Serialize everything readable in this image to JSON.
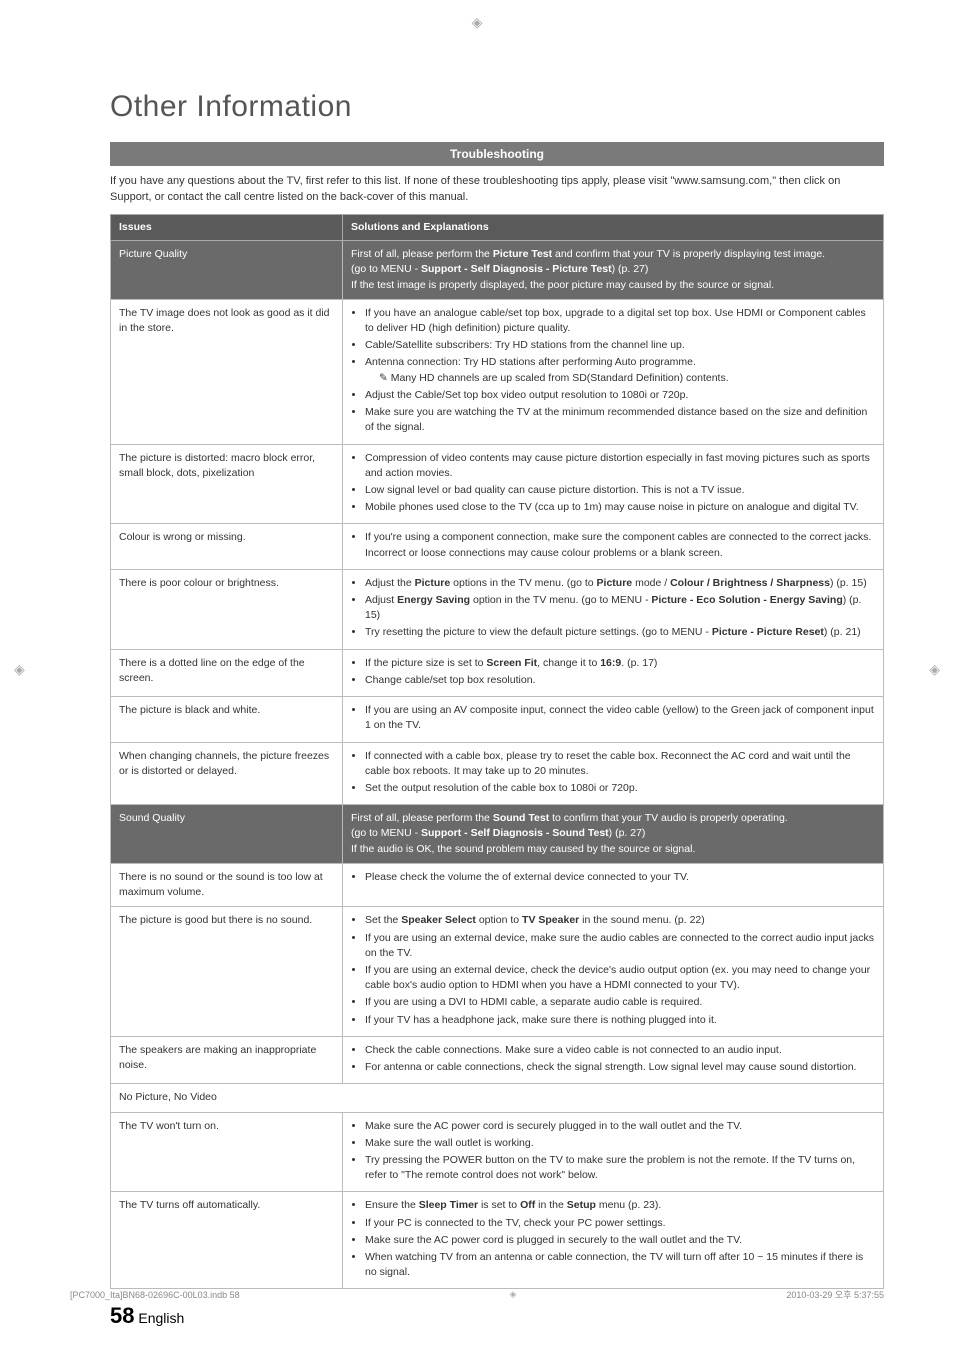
{
  "title": "Other Information",
  "sectionTitle": "Troubleshooting",
  "intro": "If you have any questions about the TV, first refer to this list. If none of these troubleshooting tips apply, please visit \"www.samsung.com,\" then click on Support, or contact the call centre listed on the back-cover of this manual.",
  "col1": "Issues",
  "col2": "Solutions and Explanations",
  "rows": [
    {
      "type": "cat",
      "issue": "Picture Quality",
      "sol": "First of all, please perform the <b>Picture Test</b> and confirm that your TV is properly displaying test image.<br>(go to MENU - <b>Support - Self Diagnosis - Picture Test</b>) (p. 27)<br>If the test image is properly displayed, the poor picture may caused by the source or signal."
    },
    {
      "issue": "The TV image does not look as good as it did in the store.",
      "sol": "<ul><li>If you have an analogue cable/set top box, upgrade to a digital set top box. Use HDMI or Component cables to deliver HD (high definition) picture quality.</li><li>Cable/Satellite subscribers: Try HD stations from the channel line up.</li><li>Antenna connection: Try HD stations after performing Auto programme.<br><span class='note'>Many HD channels are up scaled from SD(Standard Definition) contents.</span></li><li>Adjust the Cable/Set top box video output resolution to 1080i or 720p.</li><li>Make sure you are watching the TV at the minimum recommended distance based on the size and definition of the signal.</li></ul>"
    },
    {
      "issue": "The picture is distorted: macro block error, small block, dots, pixelization",
      "sol": "<ul><li>Compression of video contents may cause picture distortion especially in fast moving pictures such as sports and action movies.</li><li>Low signal level or bad quality can cause picture distortion. This is not a TV issue.</li><li>Mobile phones used close to the TV (cca up to 1m) may cause noise in picture on analogue and digital TV.</li></ul>"
    },
    {
      "issue": "Colour is wrong or missing.",
      "sol": "<ul><li>If you're using a component connection, make sure the component cables are connected to the correct jacks. Incorrect or loose connections may cause colour problems or a blank screen.</li></ul>"
    },
    {
      "issue": "There is poor colour or brightness.",
      "sol": "<ul><li>Adjust the <b>Picture</b> options in the TV menu. (go to <b>Picture</b> mode / <b>Colour / Brightness / Sharpness</b>) (p. 15)</li><li>Adjust <b>Energy Saving</b> option in the TV menu. (go to MENU - <b>Picture - Eco Solution - Energy Saving</b>) (p. 15)</li><li>Try resetting the picture to view the default picture settings. (go to MENU - <b>Picture - Picture Reset</b>) (p. 21)</li></ul>"
    },
    {
      "issue": "There is a dotted line on the edge of the screen.",
      "sol": "<ul><li>If the picture size is set to <b>Screen Fit</b>, change it to <b>16:9</b>. (p. 17)</li><li>Change cable/set top box resolution.</li></ul>"
    },
    {
      "issue": "The picture is black and white.",
      "sol": "<ul><li>If you are using an AV composite input, connect the video cable (yellow) to the Green jack of component input 1 on the TV.</li></ul>"
    },
    {
      "issue": "When changing channels, the picture freezes or is distorted or delayed.",
      "sol": "<ul><li>If connected with a cable box, please try to reset the cable box. Reconnect the AC cord and wait until the cable box reboots. It may take up to 20 minutes.</li><li>Set the output resolution of the cable box to 1080i or 720p.</li></ul>"
    },
    {
      "type": "cat",
      "issue": "Sound Quality",
      "sol": "First of all, please perform the <b>Sound Test</b> to confirm that your TV audio is properly operating.<br>(go to MENU - <b>Support - Self Diagnosis - Sound Test</b>) (p. 27)<br>If the audio is OK, the sound problem may caused by the source or signal."
    },
    {
      "issue": "There is no sound or the sound is too low at maximum volume.",
      "sol": "<ul><li>Please check the volume the of external device connected to your TV.</li></ul>"
    },
    {
      "issue": "The picture is good but there is no sound.",
      "sol": "<ul><li>Set the <b>Speaker Select</b> option to <b>TV Speaker</b> in the sound menu. (p. 22)</li><li>If you are using an external device, make sure the audio cables are connected to the correct audio input jacks on the TV.</li><li>If you are using an external device, check the device's audio output option (ex. you may need to change your cable box's audio option to HDMI when you have a HDMI connected to your TV).</li><li>If you are using a DVI to HDMI cable, a separate audio cable is required.</li><li>If your TV has a headphone jack, make sure there is nothing plugged into it.</li></ul>"
    },
    {
      "issue": "The speakers are making an inappropriate noise.",
      "sol": "<ul><li>Check the cable connections. Make sure a video cable is not connected to an audio input.</li><li>For antenna or cable connections, check the signal strength. Low signal level may cause sound distortion.</li></ul>"
    },
    {
      "type": "span",
      "issue": "No Picture, No Video"
    },
    {
      "issue": "The TV won't turn on.",
      "sol": "<ul><li>Make sure the AC power cord is securely plugged in to the wall outlet and the TV.</li><li>Make sure the wall outlet is working.</li><li>Try pressing the POWER button on the TV to make sure the problem is not the remote. If the TV turns on, refer to \"The remote control does not work\" below.</li></ul>"
    },
    {
      "issue": "The TV turns off automatically.",
      "sol": "<ul><li>Ensure the <b>Sleep Timer</b> is set to <b>Off</b> in the <b>Setup</b> menu (p. 23).</li><li>If your PC is connected to the TV, check your PC power settings.</li><li>Make sure the AC power cord is plugged in securely to the wall outlet and the TV.</li><li>When watching TV from an antenna or cable connection, the TV will turn off after 10 ~ 15 minutes if there is no signal.</li></ul>"
    }
  ],
  "pageNumber": "58",
  "pageLang": "English",
  "footerLeft": "[PC7000_Ita]BN68-02696C-00L03.indb   58",
  "footerRight": "2010-03-29   오후 5:37:55"
}
